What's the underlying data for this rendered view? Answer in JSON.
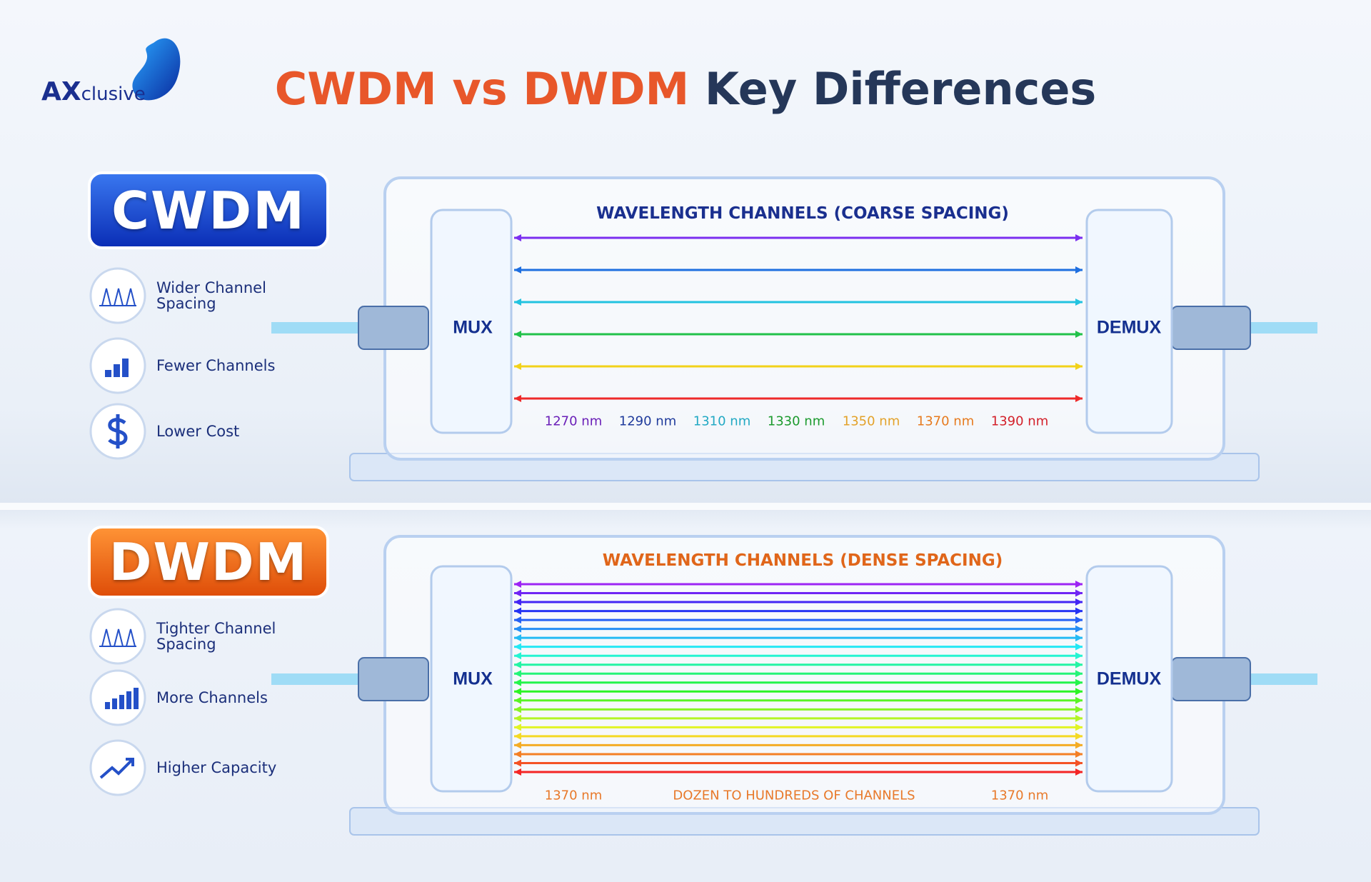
{
  "logo": {
    "bold": "AX",
    "rest": "clusive"
  },
  "title": {
    "highlight": "CWDM vs DWDM",
    "rest": "Key Differences"
  },
  "sections": [
    {
      "badge": "CWDM",
      "features": [
        "Wider Channel Spacing",
        "Fewer Channels",
        "Lower Cost"
      ],
      "diagram": {
        "title": "WAVELENGTH CHANNELS (COARSE SPACING)",
        "mux": "MUX",
        "demux": "DEMUX",
        "labels": [
          "1270 nm",
          "1290 nm",
          "1310 nm",
          "1330 nm",
          "1350 nm",
          "1370 nm",
          "1390 nm"
        ]
      }
    },
    {
      "badge": "DWDM",
      "features": [
        "Tighter Channel Spacing",
        "More Channels",
        "Higher Capacity"
      ],
      "diagram": {
        "title": "WAVELENGTH CHANNELS (DENSE SPACING)",
        "mux": "MUX",
        "demux": "DEMUX",
        "labels": [
          "1370 nm",
          "DOZEN TO HUNDREDS OF CHANNELS",
          "1370 nm"
        ]
      }
    }
  ]
}
